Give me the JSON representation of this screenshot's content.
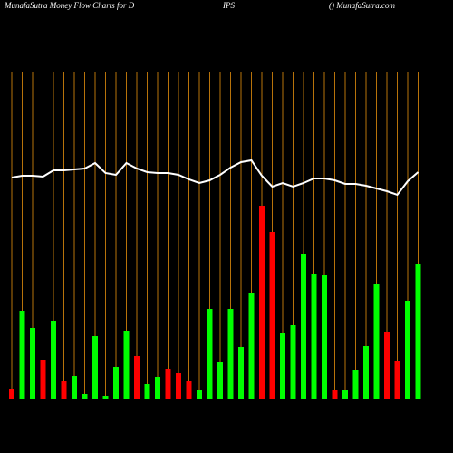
{
  "chart_data": {
    "type": "bar",
    "title": [
      "MunafaSutra  Money Flow  Charts for D",
      "IPS",
      "() MunafaSutra.com"
    ],
    "categories": [
      null,
      null,
      null,
      null,
      null,
      null,
      null,
      null,
      null,
      null,
      null,
      null,
      null,
      null,
      null,
      null,
      null,
      null,
      null,
      null,
      null,
      null,
      null,
      null,
      null,
      null,
      null,
      null,
      null,
      null,
      null,
      null,
      null,
      null,
      null,
      null,
      null,
      null,
      null,
      null
    ],
    "series": [
      {
        "type": "bar",
        "values": [
          11,
          97,
          78,
          43,
          86,
          19,
          25,
          5,
          69,
          3,
          35,
          75,
          47,
          16,
          24,
          33,
          28,
          19,
          9,
          99,
          40,
          99,
          57,
          117,
          213,
          184,
          72,
          81,
          160,
          138,
          137,
          10,
          9,
          32,
          58,
          126,
          74,
          42,
          108,
          149
        ],
        "colors": [
          "#ff0000",
          "#00ff00",
          "#00ff00",
          "#ff0000",
          "#00ff00",
          "#ff0000",
          "#00ff00",
          "#00ff00",
          "#00ff00",
          "#00ff00",
          "#00ff00",
          "#00ff00",
          "#ff0000",
          "#00ff00",
          "#00ff00",
          "#ff0000",
          "#ff0000",
          "#ff0000",
          "#00ff00",
          "#00ff00",
          "#00ff00",
          "#00ff00",
          "#00ff00",
          "#00ff00",
          "#ff0000",
          "#ff0000",
          "#00ff00",
          "#00ff00",
          "#00ff00",
          "#00ff00",
          "#00ff00",
          "#ff0000",
          "#00ff00",
          "#00ff00",
          "#00ff00",
          "#00ff00",
          "#ff0000",
          "#ff0000",
          "#00ff00",
          "#00ff00"
        ]
      },
      {
        "type": "line",
        "color": "#ffffff",
        "values": [
          244,
          246,
          246,
          245,
          252,
          252,
          253,
          254,
          260,
          249,
          247,
          260,
          254,
          250,
          249,
          249,
          247,
          242,
          238,
          241,
          247,
          255,
          261,
          263,
          246,
          234,
          238,
          234,
          238,
          243,
          243,
          241,
          237,
          237,
          235,
          232,
          229,
          225,
          240,
          250
        ]
      }
    ],
    "ylim": [
      0,
      360
    ],
    "grid_color": "#b8730a",
    "background": "#000000"
  }
}
